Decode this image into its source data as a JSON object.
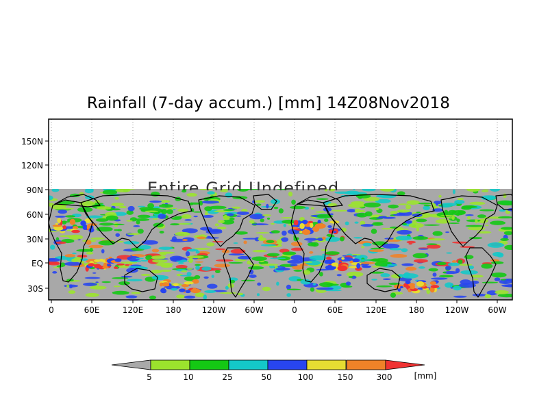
{
  "title": "Rainfall (7-day accum.) [mm] 14Z08Nov2018",
  "overlay_text": "Entire Grid Undefined",
  "map": {
    "projection": "cylindrical lon/lat",
    "longitude_range": "0 to 60W, repeated (two globe copies)",
    "undefined_color": "#a8a8a8",
    "land_outline_color": "#000000",
    "lat_ticks": [
      "150N",
      "120N",
      "90N",
      "60N",
      "30N",
      "EQ",
      "30S"
    ],
    "lon_ticks": [
      "0",
      "60E",
      "120E",
      "180",
      "120W",
      "60W",
      "0",
      "60E",
      "120E",
      "180",
      "120W",
      "60W"
    ]
  },
  "colorbar": {
    "unit": "[mm]",
    "labels": [
      "5",
      "10",
      "25",
      "50",
      "100",
      "150",
      "300"
    ],
    "colors": [
      "#a9a9a9",
      "#9be32d",
      "#14c814",
      "#14c8c8",
      "#2845f0",
      "#e6dc32",
      "#f08228",
      "#f03232"
    ]
  }
}
